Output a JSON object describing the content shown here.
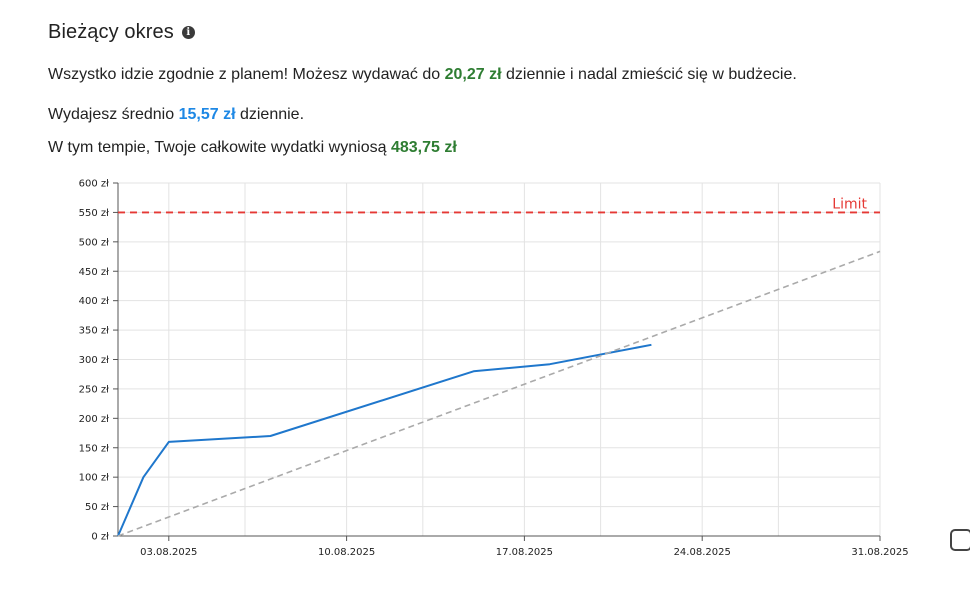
{
  "header": {
    "title": "Bieżący okres",
    "info_icon": "info-icon"
  },
  "summary": {
    "line1_prefix": "Wszystko idzie zgodnie z planem! Możesz wydawać do ",
    "line1_value": "20,27 zł",
    "line1_suffix": " dziennie i nadal zmieścić się w budżecie.",
    "line2_prefix": "Wydajesz średnio ",
    "line2_value": "15,57 zł",
    "line2_suffix": " dziennie.",
    "line3_prefix": "W tym tempie, Twoje całkowite wydatki wyniosą ",
    "line3_value": "483,75 zł"
  },
  "colors": {
    "positive": "#2e7d32",
    "average": "#1e88e5",
    "limit": "#e53935",
    "spending": "#1f77cc",
    "projection": "#aaaaaa"
  },
  "chart_data": {
    "type": "line",
    "x_unit": "date",
    "xlim": [
      "2025-08-01",
      "2025-08-31"
    ],
    "ylim": [
      0,
      600
    ],
    "y_ticks": [
      0,
      50,
      100,
      150,
      200,
      250,
      300,
      350,
      400,
      450,
      500,
      550,
      600
    ],
    "y_tick_labels": [
      "0 zł",
      "50 zł",
      "100 zł",
      "150 zł",
      "200 zł",
      "250 zł",
      "300 zł",
      "350 zł",
      "400 zł",
      "450 zł",
      "500 zł",
      "550 zł",
      "600 zł"
    ],
    "x_ticks": [
      "2025-08-03",
      "2025-08-10",
      "2025-08-17",
      "2025-08-24",
      "2025-08-31"
    ],
    "x_tick_labels": [
      "03.08.2025",
      "10.08.2025",
      "17.08.2025",
      "24.08.2025",
      "31.08.2025"
    ],
    "grid": true,
    "series": [
      {
        "style": "solid",
        "points": [
          {
            "x": "2025-08-01",
            "y": 0
          },
          {
            "x": "2025-08-02",
            "y": 100
          },
          {
            "x": "2025-08-03",
            "y": 160
          },
          {
            "x": "2025-08-07",
            "y": 170
          },
          {
            "x": "2025-08-15",
            "y": 280
          },
          {
            "x": "2025-08-18",
            "y": 292
          },
          {
            "x": "2025-08-22",
            "y": 325
          }
        ]
      },
      {
        "style": "dashed",
        "points": [
          {
            "x": "2025-08-01",
            "y": 0
          },
          {
            "x": "2025-08-31",
            "y": 483.75
          }
        ]
      }
    ],
    "limit": {
      "label": "Limit",
      "value": 550
    }
  }
}
